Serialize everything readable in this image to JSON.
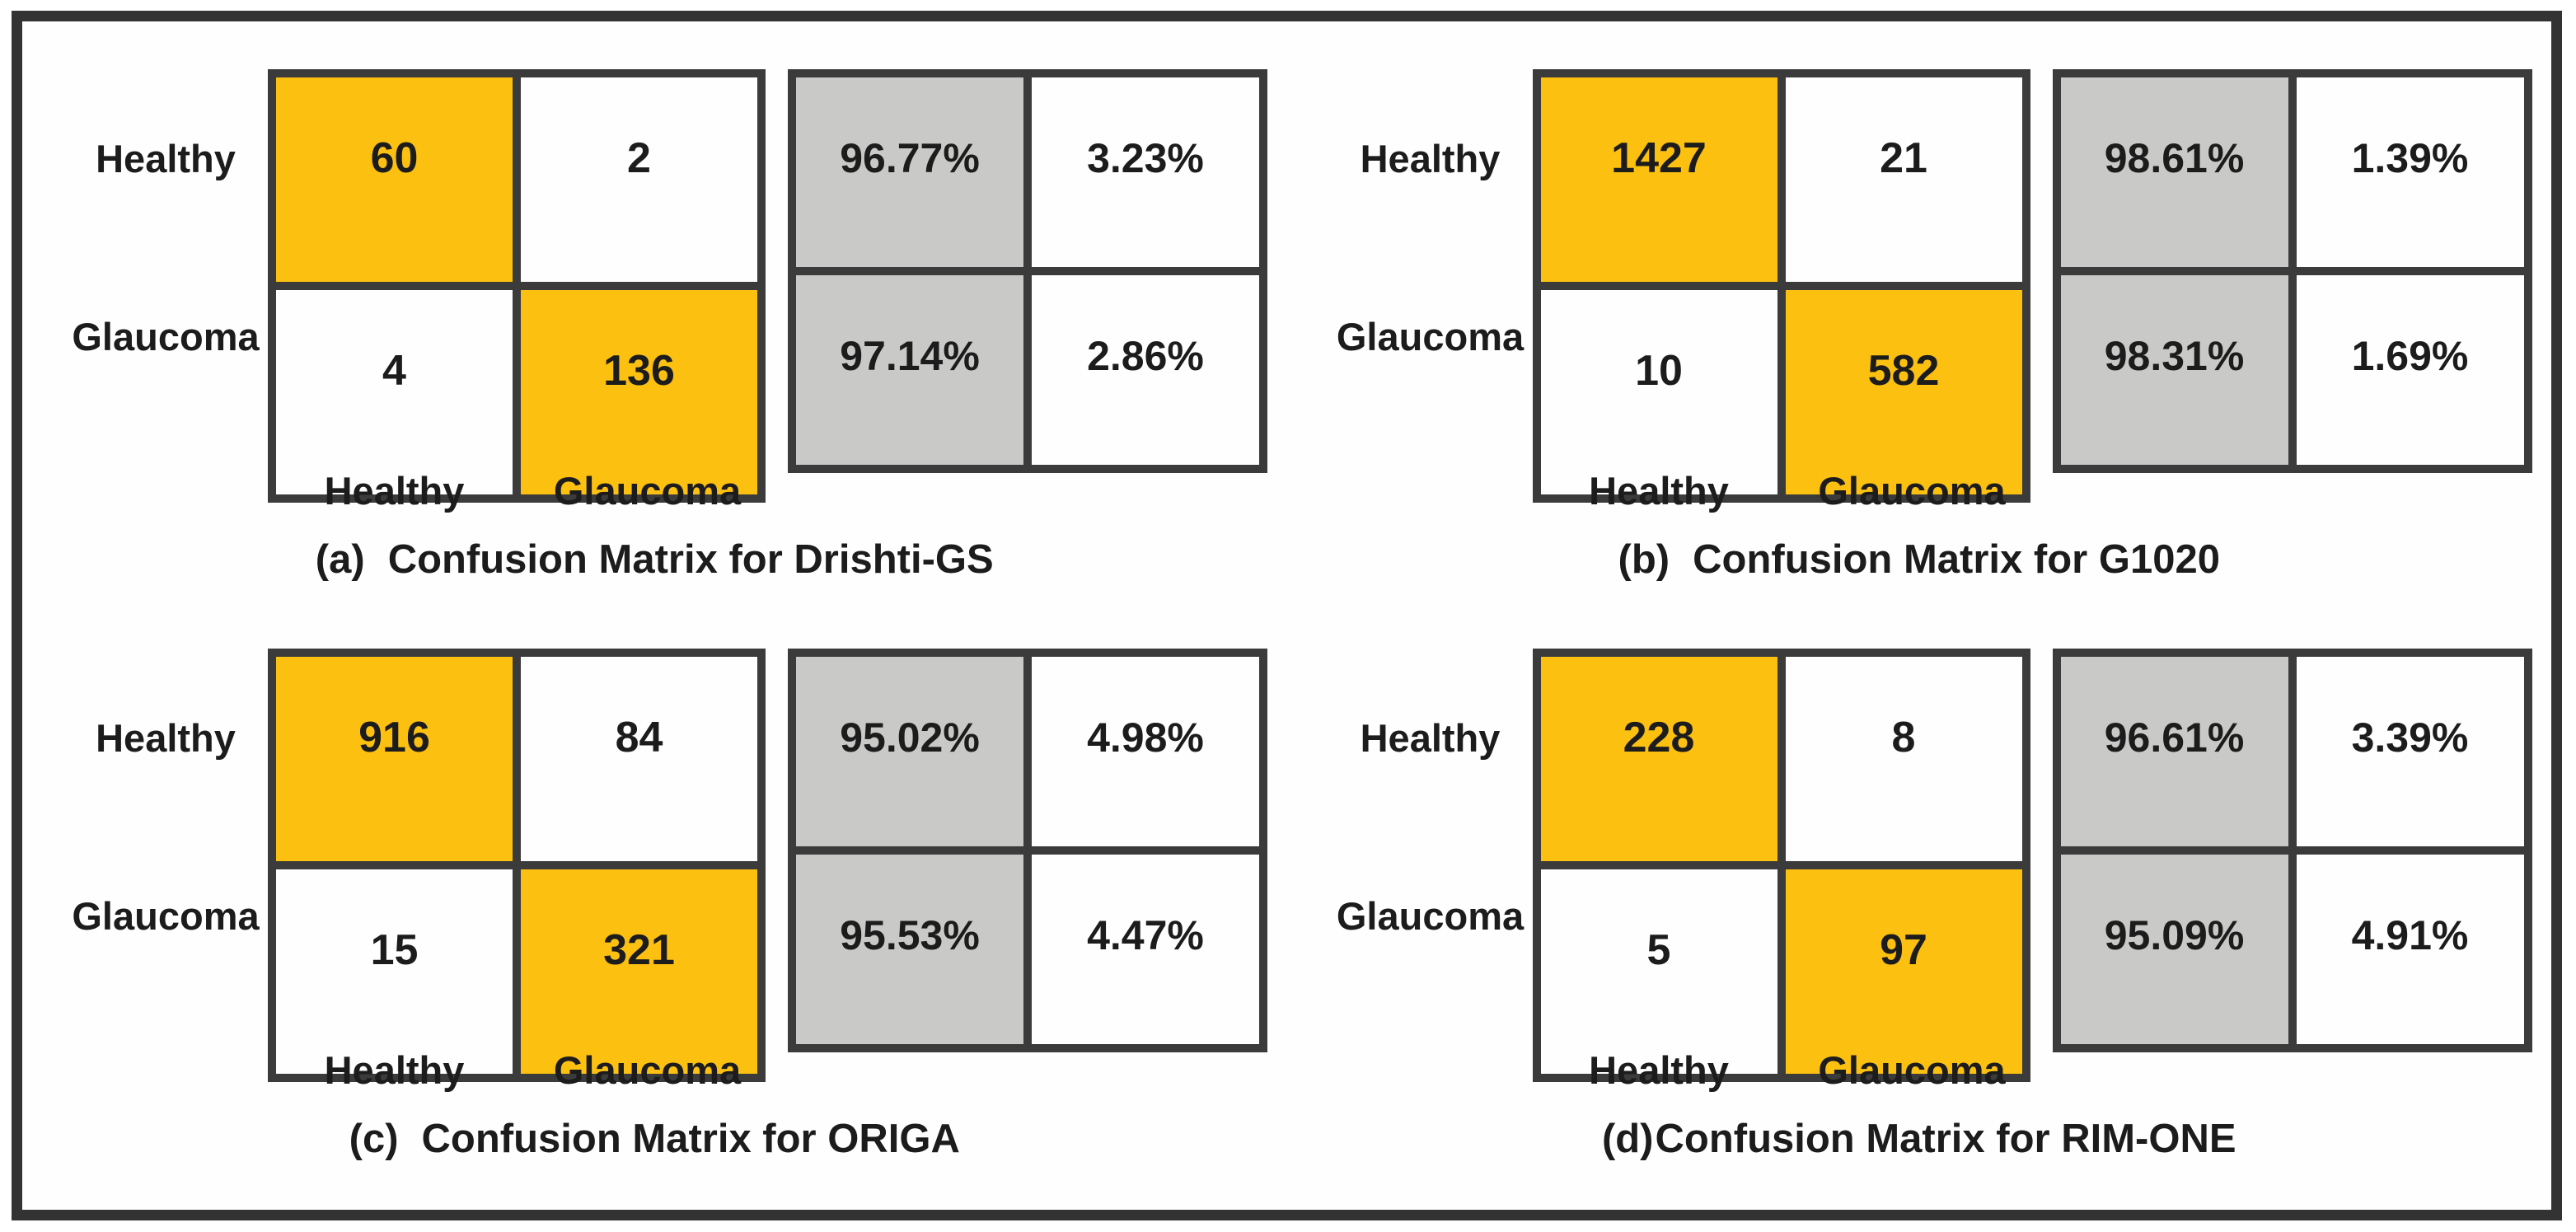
{
  "figure": {
    "row_labels": [
      "Healthy",
      "Glaucoma"
    ],
    "col_labels": [
      "Healthy",
      "Glaucoma"
    ],
    "colors": {
      "highlight_yellow": "#FCC011",
      "highlight_gray": "#C9C9C7",
      "table_border": "#3B3B3B",
      "frame_border": "#333333"
    },
    "panels": [
      {
        "caption_prefix": "(a)",
        "caption": "Confusion Matrix for Drishti-GS",
        "counts": [
          [
            "60",
            "2"
          ],
          [
            "4",
            "136"
          ]
        ],
        "percents": [
          [
            "96.77%",
            "3.23%"
          ],
          [
            "97.14%",
            "2.86%"
          ]
        ]
      },
      {
        "caption_prefix": "(b)",
        "caption": "Confusion Matrix for G1020",
        "counts": [
          [
            "1427",
            "21"
          ],
          [
            "10",
            "582"
          ]
        ],
        "percents": [
          [
            "98.61%",
            "1.39%"
          ],
          [
            "98.31%",
            "1.69%"
          ]
        ]
      },
      {
        "caption_prefix": "(c)",
        "caption": "Confusion Matrix for ORIGA",
        "counts": [
          [
            "916",
            "84"
          ],
          [
            "15",
            "321"
          ]
        ],
        "percents": [
          [
            "95.02%",
            "4.98%"
          ],
          [
            "95.53%",
            "4.47%"
          ]
        ]
      },
      {
        "caption_prefix": "(d)",
        "caption": "Confusion Matrix for RIM-ONE",
        "counts": [
          [
            "228",
            "8"
          ],
          [
            "5",
            "97"
          ]
        ],
        "percents": [
          [
            "96.61%",
            "3.39%"
          ],
          [
            "95.09%",
            "4.91%"
          ]
        ]
      }
    ]
  },
  "chart_data": [
    {
      "type": "heatmap",
      "title": "(a) Confusion Matrix for Drishti-GS",
      "dataset": "Drishti-GS",
      "rows": [
        "Healthy",
        "Glaucoma"
      ],
      "cols": [
        "Healthy",
        "Glaucoma"
      ],
      "counts": [
        [
          60,
          2
        ],
        [
          4,
          136
        ]
      ],
      "row_percentages": [
        [
          96.77,
          3.23
        ],
        [
          97.14,
          2.86
        ]
      ]
    },
    {
      "type": "heatmap",
      "title": "(b) Confusion Matrix for G1020",
      "dataset": "G1020",
      "rows": [
        "Healthy",
        "Glaucoma"
      ],
      "cols": [
        "Healthy",
        "Glaucoma"
      ],
      "counts": [
        [
          1427,
          21
        ],
        [
          10,
          582
        ]
      ],
      "row_percentages": [
        [
          98.61,
          1.39
        ],
        [
          98.31,
          1.69
        ]
      ]
    },
    {
      "type": "heatmap",
      "title": "(c) Confusion Matrix for ORIGA",
      "dataset": "ORIGA",
      "rows": [
        "Healthy",
        "Glaucoma"
      ],
      "cols": [
        "Healthy",
        "Glaucoma"
      ],
      "counts": [
        [
          916,
          84
        ],
        [
          15,
          321
        ]
      ],
      "row_percentages": [
        [
          95.02,
          4.98
        ],
        [
          95.53,
          4.47
        ]
      ]
    },
    {
      "type": "heatmap",
      "title": "(d) Confusion Matrix for RIM-ONE",
      "dataset": "RIM-ONE",
      "rows": [
        "Healthy",
        "Glaucoma"
      ],
      "cols": [
        "Healthy",
        "Glaucoma"
      ],
      "counts": [
        [
          228,
          8
        ],
        [
          5,
          97
        ]
      ],
      "row_percentages": [
        [
          96.61,
          3.39
        ],
        [
          95.09,
          4.91
        ]
      ]
    }
  ]
}
